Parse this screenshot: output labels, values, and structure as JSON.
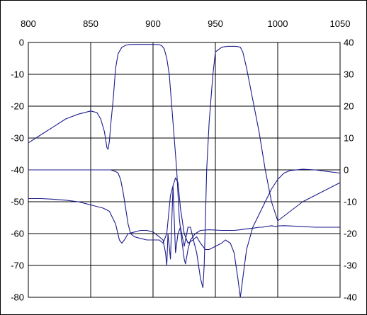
{
  "chart_data": {
    "type": "line",
    "title": "",
    "xlabel": "",
    "ylabel": "",
    "y2label": "",
    "xlim": [
      800,
      1050
    ],
    "ylim": [
      -80,
      0
    ],
    "y2lim": [
      -40,
      40
    ],
    "x_ticks": [
      800,
      850,
      900,
      950,
      1000,
      1050
    ],
    "y_ticks": [
      0,
      -10,
      -20,
      -30,
      -40,
      -50,
      -60,
      -70,
      -80
    ],
    "y2_ticks": [
      40,
      30,
      20,
      10,
      0,
      -10,
      -20,
      -30,
      -40
    ],
    "x_tick_position": "top",
    "grid": true,
    "legend": "none",
    "colors": {
      "series": "#1c1c8c",
      "grid": "#000000",
      "background": "#ffffff"
    },
    "series": [
      {
        "axis": "left",
        "x": [
          800,
          810,
          820,
          830,
          840,
          850,
          855,
          858,
          861,
          863,
          864,
          865,
          866,
          868,
          870,
          872,
          875,
          878,
          880,
          885,
          890,
          900,
          905,
          907,
          909,
          911,
          913,
          915,
          917,
          919,
          921,
          923,
          925,
          926,
          928,
          930,
          934,
          938,
          945,
          955,
          960,
          965,
          970,
          975,
          980,
          985,
          988,
          990,
          992,
          994,
          995,
          996,
          998,
          1000,
          1005,
          1010,
          1020,
          1030,
          1040,
          1050
        ],
        "y": [
          -31.5,
          -29,
          -26.5,
          -24,
          -22.5,
          -21.5,
          -22,
          -24,
          -28,
          -33,
          -33.5,
          -31,
          -26,
          -18,
          -8,
          -3.5,
          -1.5,
          -0.9,
          -0.7,
          -0.6,
          -0.6,
          -0.6,
          -0.7,
          -1.0,
          -2.0,
          -5.0,
          -10,
          -20,
          -30,
          -40,
          -55,
          -62,
          -68,
          -69.5,
          -65,
          -62,
          -60,
          -59,
          -58.8,
          -59,
          -59,
          -59,
          -58.8,
          -58.5,
          -58.3,
          -58,
          -58,
          -57.8,
          -57.7,
          -57.6,
          -57.5,
          -57.6,
          -57.8,
          -57.6,
          -57.5,
          -57.6,
          -57.8,
          -58,
          -58,
          -58
        ]
      },
      {
        "axis": "left",
        "x": [
          800,
          810,
          820,
          840,
          850,
          860,
          866,
          870,
          872,
          874,
          876,
          878,
          880,
          882,
          885,
          890,
          895,
          900,
          905,
          908,
          911,
          914,
          916,
          918,
          920,
          922,
          925,
          928,
          932,
          935,
          938,
          942,
          945,
          950,
          955,
          958,
          962,
          965,
          968,
          970,
          975,
          980,
          985,
          990,
          995,
          1000,
          1005,
          1010,
          1020,
          1030,
          1040,
          1050
        ],
        "y": [
          -40,
          -40,
          -40,
          -40,
          -40,
          -40,
          -40,
          -40.5,
          -41,
          -43,
          -47,
          -52,
          -57,
          -60,
          -61,
          -61.5,
          -62,
          -62,
          -62,
          -63,
          -60,
          -48,
          -45,
          -42.5,
          -44,
          -52,
          -60,
          -63,
          -62,
          -61,
          -63,
          -65,
          -65,
          -64,
          -63,
          -62,
          -63,
          -66,
          -74,
          -80,
          -65,
          -58,
          -54,
          -50,
          -46,
          -43,
          -41,
          -40.2,
          -39.8,
          -40,
          -40.5,
          -41
        ]
      },
      {
        "axis": "left",
        "x": [
          800,
          810,
          820,
          830,
          840,
          850,
          860,
          865,
          870,
          873,
          875,
          877,
          880,
          885,
          890,
          895,
          900,
          905,
          908,
          910,
          911,
          912,
          914,
          916,
          918,
          920,
          922,
          924,
          925,
          926,
          928,
          930,
          933,
          935,
          938,
          940,
          941,
          942,
          943,
          945,
          948,
          950,
          955,
          958,
          960,
          963,
          965,
          966,
          968,
          970,
          972,
          975,
          980,
          985,
          990,
          995,
          1000,
          1010,
          1020,
          1030,
          1040,
          1050
        ],
        "y": [
          -49,
          -49,
          -49.2,
          -49.5,
          -50,
          -51,
          -52,
          -53,
          -57,
          -62,
          -63,
          -62,
          -60,
          -59.5,
          -59,
          -59,
          -59.5,
          -61,
          -62,
          -66,
          -70,
          -60,
          -68,
          -45,
          -66,
          -60,
          -58,
          -62,
          -64,
          -62,
          -58,
          -58,
          -63,
          -66,
          -74,
          -77,
          -70,
          -56,
          -40,
          -25,
          -10,
          -3,
          -1.5,
          -1.3,
          -1.2,
          -1.2,
          -1.2,
          -1.2,
          -1.3,
          -1.5,
          -3,
          -8,
          -18,
          -28,
          -40,
          -50,
          -56,
          -53,
          -50,
          -48,
          -46,
          -44
        ]
      }
    ]
  }
}
